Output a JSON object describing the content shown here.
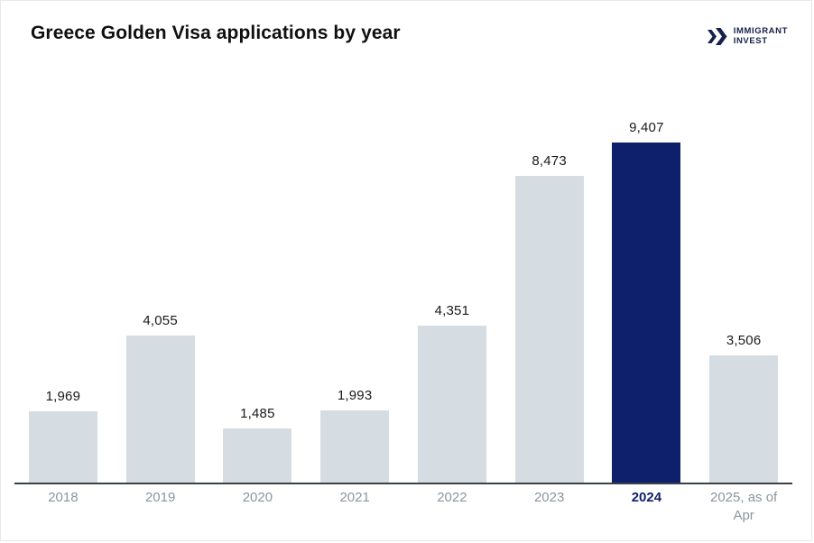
{
  "header": {
    "title": "Greece Golden Visa applications by year",
    "logo": {
      "line1": "IMMIGRANT",
      "line2": "INVEST",
      "icon": "double-chevron-right-icon",
      "color": "#16204a"
    }
  },
  "chart_data": {
    "type": "bar",
    "title": "Greece Golden Visa applications by year",
    "categories": [
      "2018",
      "2019",
      "2020",
      "2021",
      "2022",
      "2023",
      "2024",
      "2025, as of Apr"
    ],
    "values": [
      1969,
      4055,
      1485,
      1993,
      4351,
      8473,
      9407,
      3506
    ],
    "value_labels": [
      "1,969",
      "4,055",
      "1,485",
      "1,993",
      "4,351",
      "8,473",
      "9,407",
      "3,506"
    ],
    "highlight_index": 6,
    "xlabel": "",
    "ylabel": "",
    "ylim": [
      0,
      9407
    ],
    "grid": false,
    "legend": false,
    "colors": {
      "bar": "#d5dde3",
      "highlight_bar": "#0e1f6b",
      "value_label": "#1a1a1a",
      "tick": "#8d959c",
      "highlight_tick": "#0e1f6b",
      "axis_line": "#3a4147"
    }
  }
}
